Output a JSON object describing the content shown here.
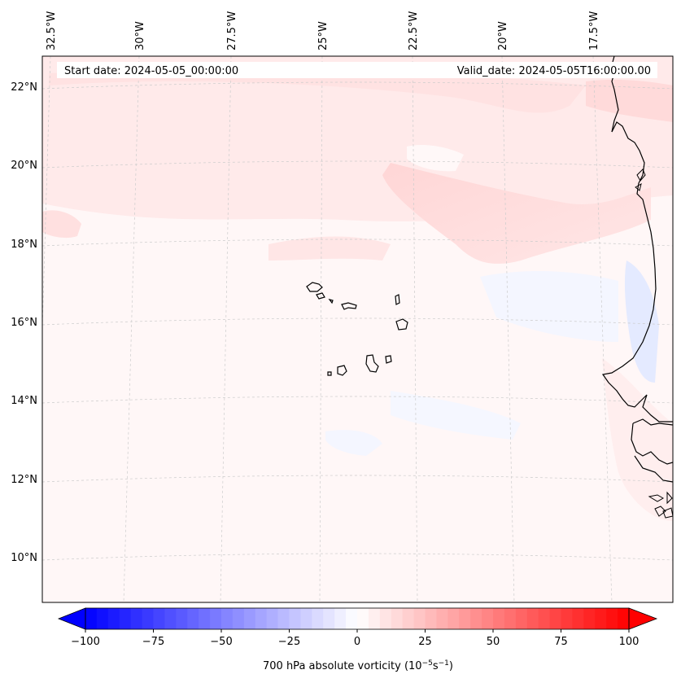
{
  "header": {
    "start_date": "Start date: 2024-05-05_00:00:00",
    "valid_date": "Valid_date: 2024-05-05T16:00:00.00"
  },
  "map": {
    "lon_labels": [
      "32.5°W",
      "30°W",
      "27.5°W",
      "25°W",
      "22.5°W",
      "20°W",
      "17.5°W"
    ],
    "lat_labels": [
      "22°N",
      "20°N",
      "18°N",
      "16°N",
      "14°N",
      "12°N",
      "10°N"
    ],
    "coast_color": "#000000",
    "grid_color": "#cccccc"
  },
  "colorbar": {
    "title_prefix": "700 hPa absolute vorticity (10",
    "title_exp1": "−5",
    "title_mid": "s",
    "title_exp2": "−1",
    "title_suffix": ")",
    "min": -100,
    "max": 100,
    "tick_values": [
      -100,
      -75,
      -50,
      -25,
      0,
      25,
      50,
      75,
      100
    ],
    "tick_labels": [
      "−100",
      "−75",
      "−50",
      "−25",
      "0",
      "25",
      "50",
      "75",
      "100"
    ],
    "low_color": "#0000ff",
    "mid_color": "#ffffff",
    "high_color": "#ff0000"
  }
}
